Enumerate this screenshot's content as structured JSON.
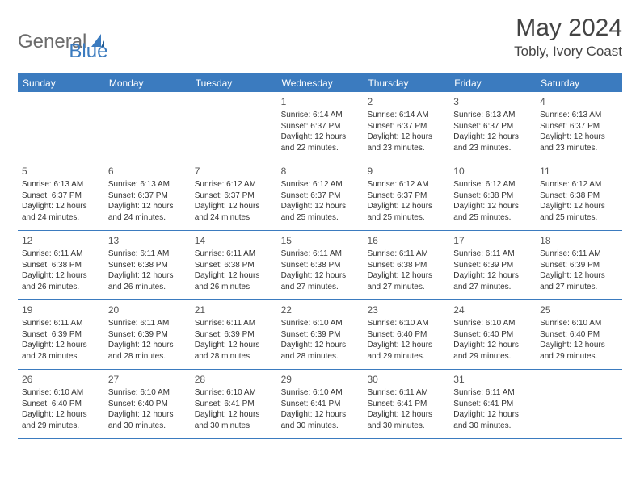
{
  "logo": {
    "text_gray": "General",
    "text_blue": "Blue"
  },
  "title": "May 2024",
  "location": "Tobly, Ivory Coast",
  "colors": {
    "header_bg": "#3b7bbf",
    "header_text": "#ffffff",
    "border": "#3b7bbf",
    "body_text": "#333333",
    "title_text": "#444444",
    "logo_gray": "#6b6b6b",
    "logo_blue": "#3b7bbf",
    "background": "#ffffff"
  },
  "days_of_week": [
    "Sunday",
    "Monday",
    "Tuesday",
    "Wednesday",
    "Thursday",
    "Friday",
    "Saturday"
  ],
  "weeks": [
    [
      null,
      null,
      null,
      {
        "n": "1",
        "sr": "6:14 AM",
        "ss": "6:37 PM",
        "dl": "12 hours and 22 minutes."
      },
      {
        "n": "2",
        "sr": "6:14 AM",
        "ss": "6:37 PM",
        "dl": "12 hours and 23 minutes."
      },
      {
        "n": "3",
        "sr": "6:13 AM",
        "ss": "6:37 PM",
        "dl": "12 hours and 23 minutes."
      },
      {
        "n": "4",
        "sr": "6:13 AM",
        "ss": "6:37 PM",
        "dl": "12 hours and 23 minutes."
      }
    ],
    [
      {
        "n": "5",
        "sr": "6:13 AM",
        "ss": "6:37 PM",
        "dl": "12 hours and 24 minutes."
      },
      {
        "n": "6",
        "sr": "6:13 AM",
        "ss": "6:37 PM",
        "dl": "12 hours and 24 minutes."
      },
      {
        "n": "7",
        "sr": "6:12 AM",
        "ss": "6:37 PM",
        "dl": "12 hours and 24 minutes."
      },
      {
        "n": "8",
        "sr": "6:12 AM",
        "ss": "6:37 PM",
        "dl": "12 hours and 25 minutes."
      },
      {
        "n": "9",
        "sr": "6:12 AM",
        "ss": "6:37 PM",
        "dl": "12 hours and 25 minutes."
      },
      {
        "n": "10",
        "sr": "6:12 AM",
        "ss": "6:38 PM",
        "dl": "12 hours and 25 minutes."
      },
      {
        "n": "11",
        "sr": "6:12 AM",
        "ss": "6:38 PM",
        "dl": "12 hours and 25 minutes."
      }
    ],
    [
      {
        "n": "12",
        "sr": "6:11 AM",
        "ss": "6:38 PM",
        "dl": "12 hours and 26 minutes."
      },
      {
        "n": "13",
        "sr": "6:11 AM",
        "ss": "6:38 PM",
        "dl": "12 hours and 26 minutes."
      },
      {
        "n": "14",
        "sr": "6:11 AM",
        "ss": "6:38 PM",
        "dl": "12 hours and 26 minutes."
      },
      {
        "n": "15",
        "sr": "6:11 AM",
        "ss": "6:38 PM",
        "dl": "12 hours and 27 minutes."
      },
      {
        "n": "16",
        "sr": "6:11 AM",
        "ss": "6:38 PM",
        "dl": "12 hours and 27 minutes."
      },
      {
        "n": "17",
        "sr": "6:11 AM",
        "ss": "6:39 PM",
        "dl": "12 hours and 27 minutes."
      },
      {
        "n": "18",
        "sr": "6:11 AM",
        "ss": "6:39 PM",
        "dl": "12 hours and 27 minutes."
      }
    ],
    [
      {
        "n": "19",
        "sr": "6:11 AM",
        "ss": "6:39 PM",
        "dl": "12 hours and 28 minutes."
      },
      {
        "n": "20",
        "sr": "6:11 AM",
        "ss": "6:39 PM",
        "dl": "12 hours and 28 minutes."
      },
      {
        "n": "21",
        "sr": "6:11 AM",
        "ss": "6:39 PM",
        "dl": "12 hours and 28 minutes."
      },
      {
        "n": "22",
        "sr": "6:10 AM",
        "ss": "6:39 PM",
        "dl": "12 hours and 28 minutes."
      },
      {
        "n": "23",
        "sr": "6:10 AM",
        "ss": "6:40 PM",
        "dl": "12 hours and 29 minutes."
      },
      {
        "n": "24",
        "sr": "6:10 AM",
        "ss": "6:40 PM",
        "dl": "12 hours and 29 minutes."
      },
      {
        "n": "25",
        "sr": "6:10 AM",
        "ss": "6:40 PM",
        "dl": "12 hours and 29 minutes."
      }
    ],
    [
      {
        "n": "26",
        "sr": "6:10 AM",
        "ss": "6:40 PM",
        "dl": "12 hours and 29 minutes."
      },
      {
        "n": "27",
        "sr": "6:10 AM",
        "ss": "6:40 PM",
        "dl": "12 hours and 30 minutes."
      },
      {
        "n": "28",
        "sr": "6:10 AM",
        "ss": "6:41 PM",
        "dl": "12 hours and 30 minutes."
      },
      {
        "n": "29",
        "sr": "6:10 AM",
        "ss": "6:41 PM",
        "dl": "12 hours and 30 minutes."
      },
      {
        "n": "30",
        "sr": "6:11 AM",
        "ss": "6:41 PM",
        "dl": "12 hours and 30 minutes."
      },
      {
        "n": "31",
        "sr": "6:11 AM",
        "ss": "6:41 PM",
        "dl": "12 hours and 30 minutes."
      },
      null
    ]
  ],
  "labels": {
    "sunrise": "Sunrise:",
    "sunset": "Sunset:",
    "daylight": "Daylight:"
  }
}
